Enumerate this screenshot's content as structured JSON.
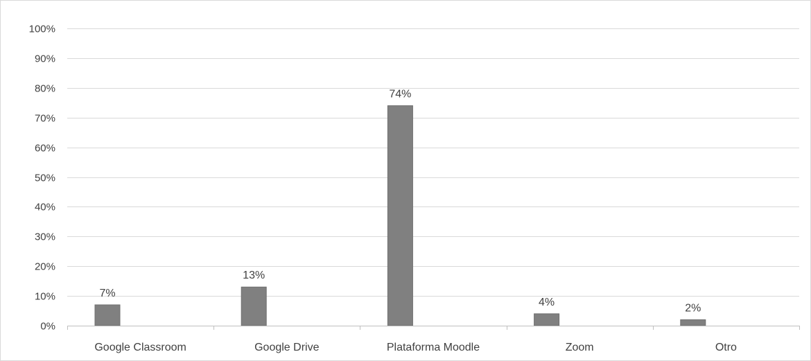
{
  "chart_data": {
    "type": "bar",
    "title": "",
    "xlabel": "",
    "ylabel": "",
    "categories": [
      "Google Classroom",
      "Google Drive",
      "Plataforma Moodle",
      "Zoom",
      "Otro"
    ],
    "values": [
      7,
      13,
      74,
      4,
      2
    ],
    "data_labels": [
      "7%",
      "13%",
      "74%",
      "4%",
      "2%"
    ],
    "ylim": [
      0,
      100
    ],
    "yticks": [
      0,
      10,
      20,
      30,
      40,
      50,
      60,
      70,
      80,
      90,
      100
    ],
    "ytick_labels": [
      "0%",
      "10%",
      "20%",
      "30%",
      "40%",
      "50%",
      "60%",
      "70%",
      "80%",
      "90%",
      "100%"
    ],
    "grid": true,
    "legend": "none",
    "colors": {
      "bar": "#808080",
      "bar_border": "#6f6f6f",
      "grid": "#d9d9d9",
      "axis": "#bfbfbf",
      "text": "#404040"
    }
  }
}
